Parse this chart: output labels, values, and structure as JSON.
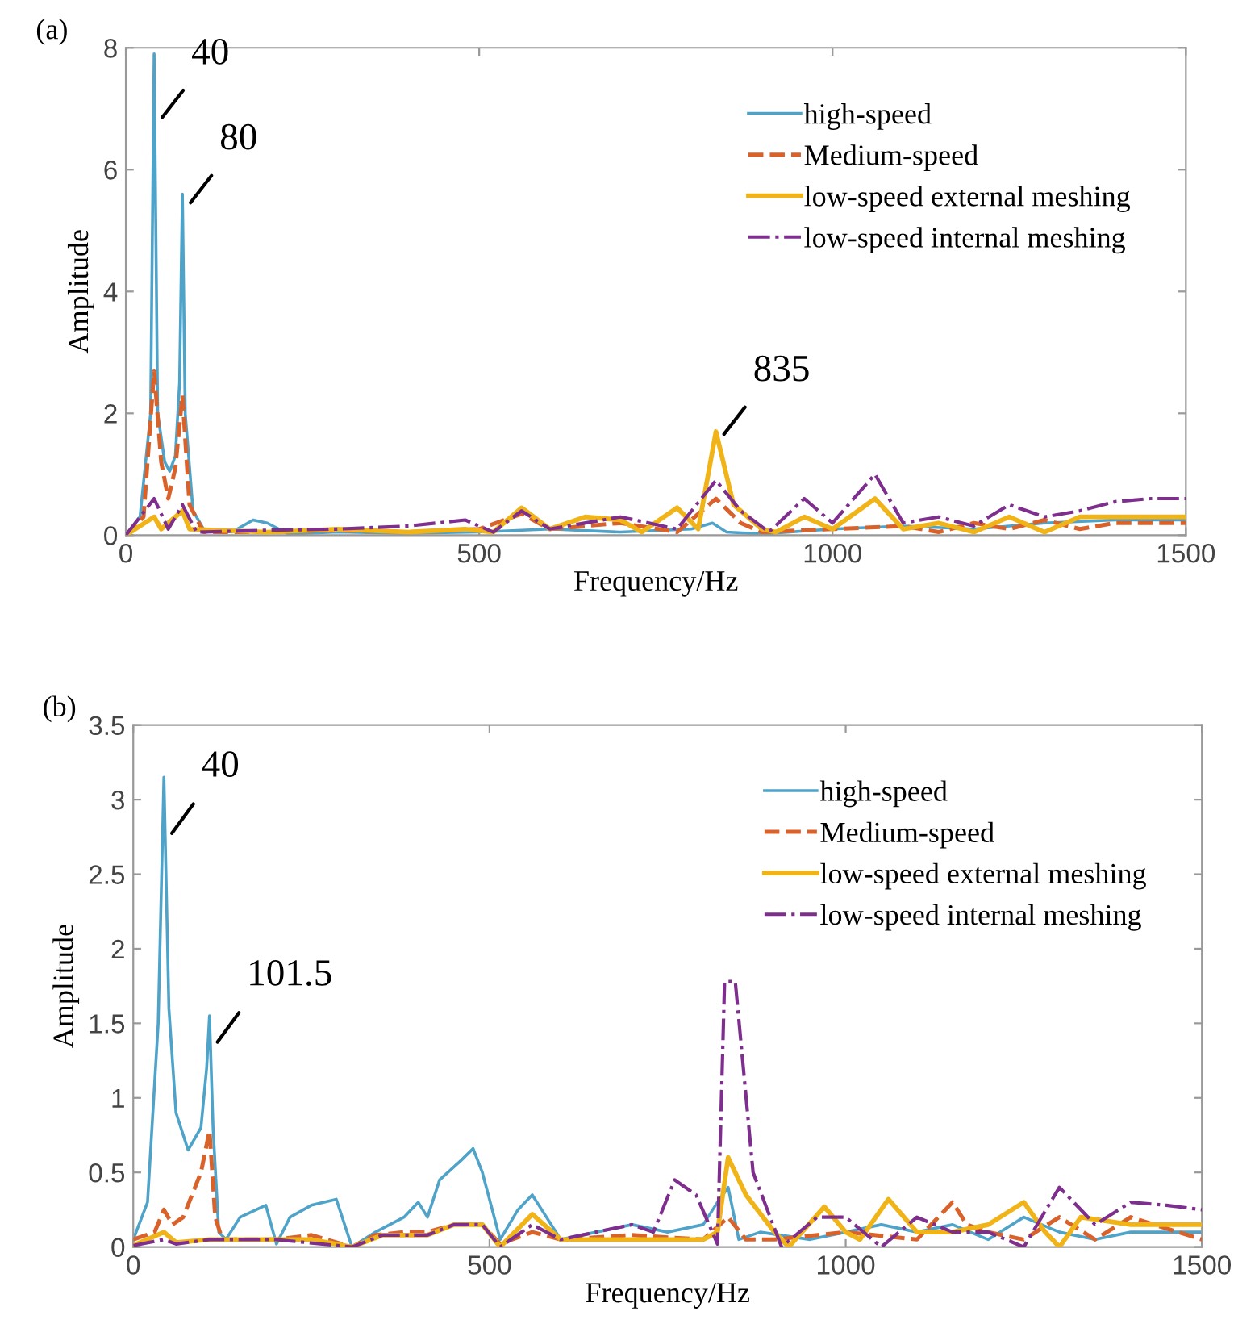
{
  "chart_data": [
    {
      "type": "line",
      "title": "(a)",
      "xlabel": "Frequency/Hz",
      "ylabel": "Amplitude",
      "xlim": [
        0,
        1500
      ],
      "xticks": [
        0,
        500,
        1000,
        1500
      ],
      "ylim": [
        0,
        8
      ],
      "yticks": [
        0,
        2,
        4,
        6,
        8
      ],
      "grid": false,
      "legend": "top right",
      "annotations": [
        {
          "text": "40",
          "x": 40,
          "y": 6.8
        },
        {
          "text": "80",
          "x": 80,
          "y": 5.4
        },
        {
          "text": "835",
          "x": 835,
          "y": 1.6
        }
      ],
      "series": [
        {
          "name": "high-speed",
          "color": "#4fa3c8",
          "line_style": "solid",
          "x": [
            0,
            20,
            35,
            40,
            45,
            55,
            62,
            70,
            76,
            80,
            84,
            95,
            110,
            150,
            180,
            200,
            230,
            300,
            400,
            500,
            600,
            700,
            800,
            830,
            850,
            900,
            1000,
            1100,
            1200,
            1300,
            1400,
            1500
          ],
          "values": [
            0,
            0.3,
            2,
            7.9,
            2,
            1.2,
            1.05,
            1.3,
            2.5,
            5.6,
            2,
            0.4,
            0.1,
            0.05,
            0.25,
            0.2,
            0.02,
            0.05,
            0.03,
            0.05,
            0.1,
            0.05,
            0.1,
            0.2,
            0.05,
            0.02,
            0.1,
            0.15,
            0.1,
            0.2,
            0.25,
            0.25
          ]
        },
        {
          "name": "Medium-speed",
          "color": "#d9622b",
          "line_style": "dashed",
          "x": [
            0,
            25,
            40,
            50,
            60,
            70,
            80,
            90,
            110,
            200,
            300,
            400,
            500,
            560,
            600,
            700,
            780,
            835,
            870,
            900,
            1000,
            1100,
            1150,
            1200,
            1250,
            1300,
            1350,
            1400,
            1500
          ],
          "values": [
            0,
            0.3,
            2.7,
            1.2,
            0.6,
            1.1,
            2.3,
            0.5,
            0.05,
            0.05,
            0.08,
            0.05,
            0.1,
            0.35,
            0.1,
            0.2,
            0.05,
            0.6,
            0.2,
            0.05,
            0.1,
            0.15,
            0.05,
            0.2,
            0.1,
            0.25,
            0.1,
            0.2,
            0.2
          ]
        },
        {
          "name": "low-speed external meshing",
          "color": "#f0b418",
          "line_style": "solid",
          "x": [
            0,
            40,
            50,
            80,
            90,
            200,
            300,
            400,
            480,
            520,
            560,
            600,
            650,
            700,
            730,
            780,
            810,
            835,
            860,
            900,
            920,
            960,
            1000,
            1060,
            1100,
            1150,
            1200,
            1250,
            1300,
            1350,
            1400,
            1500
          ],
          "values": [
            0,
            0.3,
            0.1,
            0.4,
            0.1,
            0.05,
            0.1,
            0.05,
            0.1,
            0.05,
            0.45,
            0.1,
            0.3,
            0.25,
            0.05,
            0.45,
            0.1,
            1.7,
            0.5,
            0.1,
            0.05,
            0.3,
            0.1,
            0.6,
            0.1,
            0.2,
            0.05,
            0.3,
            0.05,
            0.3,
            0.3,
            0.3
          ]
        },
        {
          "name": "low-speed internal meshing",
          "color": "#7e2f8e",
          "line_style": "dashdot",
          "x": [
            0,
            40,
            60,
            80,
            100,
            200,
            300,
            400,
            480,
            520,
            560,
            600,
            700,
            780,
            835,
            870,
            910,
            960,
            1000,
            1060,
            1100,
            1150,
            1200,
            1250,
            1300,
            1350,
            1400,
            1450,
            1500
          ],
          "values": [
            0,
            0.6,
            0.1,
            0.5,
            0.05,
            0.08,
            0.1,
            0.15,
            0.25,
            0.05,
            0.4,
            0.1,
            0.3,
            0.1,
            0.9,
            0.4,
            0.05,
            0.6,
            0.2,
            1.0,
            0.2,
            0.3,
            0.15,
            0.5,
            0.3,
            0.4,
            0.55,
            0.6,
            0.6
          ]
        }
      ]
    },
    {
      "type": "line",
      "title": "(b)",
      "xlabel": "Frequency/Hz",
      "ylabel": "Amplitude",
      "xlim": [
        0,
        1500
      ],
      "xticks": [
        0,
        500,
        1000,
        1500
      ],
      "ylim": [
        0,
        3.5
      ],
      "yticks": [
        0,
        0.5,
        1,
        1.5,
        2,
        2.5,
        3,
        3.5
      ],
      "grid": false,
      "legend": "top right",
      "annotations": [
        {
          "text": "40",
          "x": 43,
          "y": 2.75
        },
        {
          "text": "101.5",
          "x": 107,
          "y": 1.35
        }
      ],
      "series": [
        {
          "name": "high-speed",
          "color": "#4fa3c8",
          "line_style": "solid",
          "x": [
            0,
            20,
            35,
            43,
            50,
            60,
            77,
            95,
            103,
            107,
            112,
            120,
            130,
            150,
            186,
            201,
            220,
            250,
            285,
            307,
            340,
            380,
            400,
            413,
            430,
            460,
            477,
            490,
            515,
            540,
            560,
            580,
            600,
            650,
            700,
            750,
            800,
            820,
            835,
            850,
            880,
            950,
            1000,
            1050,
            1100,
            1150,
            1200,
            1250,
            1300,
            1350,
            1400,
            1500
          ],
          "values": [
            0.05,
            0.3,
            1.5,
            3.15,
            1.6,
            0.9,
            0.65,
            0.8,
            1.2,
            1.55,
            0.8,
            0.1,
            0.05,
            0.2,
            0.28,
            0.02,
            0.2,
            0.28,
            0.32,
            0.0,
            0.1,
            0.2,
            0.3,
            0.2,
            0.45,
            0.58,
            0.66,
            0.5,
            0.05,
            0.25,
            0.35,
            0.2,
            0.05,
            0.1,
            0.15,
            0.1,
            0.15,
            0.3,
            0.4,
            0.05,
            0.1,
            0.05,
            0.1,
            0.15,
            0.1,
            0.15,
            0.05,
            0.2,
            0.1,
            0.05,
            0.1,
            0.1
          ]
        },
        {
          "name": "Medium-speed",
          "color": "#d9622b",
          "line_style": "dashed",
          "x": [
            0,
            30,
            43,
            55,
            70,
            95,
            107,
            115,
            125,
            200,
            250,
            307,
            340,
            380,
            413,
            450,
            490,
            515,
            560,
            600,
            700,
            800,
            835,
            860,
            900,
            1000,
            1100,
            1150,
            1170,
            1200,
            1250,
            1300,
            1350,
            1400,
            1500
          ],
          "values": [
            0.05,
            0.1,
            0.25,
            0.15,
            0.2,
            0.5,
            0.78,
            0.2,
            0.05,
            0.05,
            0.08,
            0.0,
            0.08,
            0.1,
            0.1,
            0.15,
            0.15,
            0.02,
            0.1,
            0.05,
            0.08,
            0.05,
            0.2,
            0.05,
            0.05,
            0.1,
            0.05,
            0.3,
            0.15,
            0.1,
            0.05,
            0.2,
            0.05,
            0.2,
            0.05
          ]
        },
        {
          "name": "low-speed external meshing",
          "color": "#f0b418",
          "line_style": "solid",
          "x": [
            0,
            43,
            60,
            107,
            150,
            200,
            250,
            307,
            350,
            413,
            450,
            490,
            515,
            560,
            600,
            700,
            800,
            820,
            835,
            860,
            900,
            920,
            970,
            1000,
            1020,
            1060,
            1100,
            1150,
            1200,
            1250,
            1280,
            1300,
            1330,
            1400,
            1500
          ],
          "values": [
            0.01,
            0.1,
            0.03,
            0.05,
            0.05,
            0.05,
            0.05,
            0.0,
            0.08,
            0.08,
            0.15,
            0.15,
            0.0,
            0.22,
            0.05,
            0.05,
            0.05,
            0.1,
            0.6,
            0.35,
            0.1,
            0.0,
            0.27,
            0.1,
            0.05,
            0.32,
            0.1,
            0.1,
            0.15,
            0.3,
            0.1,
            0.0,
            0.2,
            0.15,
            0.15
          ]
        },
        {
          "name": "low-speed internal meshing",
          "color": "#7e2f8e",
          "line_style": "dashdot",
          "x": [
            0,
            43,
            60,
            107,
            200,
            307,
            350,
            413,
            450,
            490,
            515,
            560,
            600,
            650,
            700,
            730,
            760,
            790,
            820,
            830,
            845,
            870,
            910,
            960,
            1000,
            1050,
            1100,
            1150,
            1200,
            1250,
            1300,
            1350,
            1400,
            1450,
            1500
          ],
          "values": [
            0.01,
            0.05,
            0.02,
            0.05,
            0.05,
            0.0,
            0.08,
            0.08,
            0.15,
            0.15,
            0.0,
            0.15,
            0.05,
            0.1,
            0.15,
            0.1,
            0.45,
            0.35,
            0.02,
            1.78,
            1.78,
            0.5,
            0.0,
            0.2,
            0.2,
            0.0,
            0.2,
            0.1,
            0.1,
            0.0,
            0.4,
            0.15,
            0.3,
            0.28,
            0.25
          ]
        }
      ]
    }
  ]
}
